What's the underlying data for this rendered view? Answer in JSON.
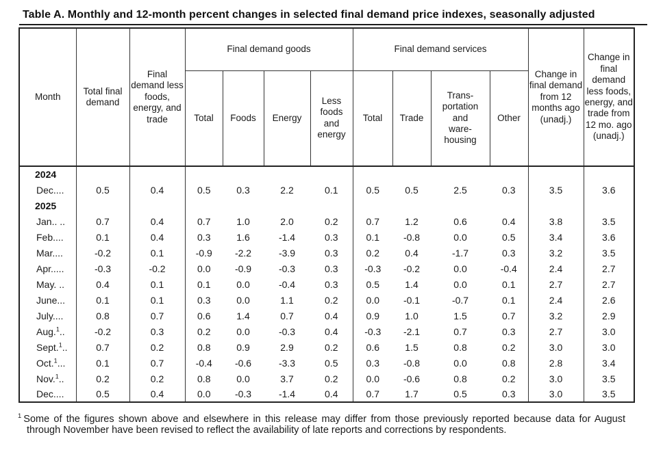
{
  "title": "Table A. Monthly and 12-month percent changes in selected final demand price indexes, seasonally adjusted",
  "table": {
    "header": {
      "month": "Month",
      "total_final_demand": "Total final demand",
      "fd_less_fet": "Final demand less foods, energy, and trade",
      "goods_group": "Final demand goods",
      "goods_cols": [
        "Total",
        "Foods",
        "Energy",
        "Less foods and energy"
      ],
      "services_group": "Final demand services",
      "services_cols": [
        "Total",
        "Trade",
        "Trans-\nportation\nand\nware-\nhousing",
        "Other"
      ],
      "change_12mo": "Change in final demand from 12 months ago (unadj.)",
      "change_12mo_less": "Change in final demand less foods, energy, and trade from 12 mo. ago (unadj.)"
    },
    "rows": [
      {
        "type": "year",
        "label": "2024"
      },
      {
        "type": "month",
        "label": "Dec",
        "sup": "",
        "dots": "....",
        "values": [
          "0.5",
          "0.4",
          "0.5",
          "0.3",
          "2.2",
          "0.1",
          "0.5",
          "0.5",
          "2.5",
          "0.3",
          "3.5",
          "3.6"
        ]
      },
      {
        "type": "year",
        "label": "2025"
      },
      {
        "type": "month",
        "label": "Jan",
        "sup": "",
        "dots": ".. ..",
        "values": [
          "0.7",
          "0.4",
          "0.7",
          "1.0",
          "2.0",
          "0.2",
          "0.7",
          "1.2",
          "0.6",
          "0.4",
          "3.8",
          "3.5"
        ]
      },
      {
        "type": "month",
        "label": "Feb",
        "sup": "",
        "dots": "....",
        "values": [
          "0.1",
          "0.4",
          "0.3",
          "1.6",
          "-1.4",
          "0.3",
          "0.1",
          "-0.8",
          "0.0",
          "0.5",
          "3.4",
          "3.6"
        ]
      },
      {
        "type": "month",
        "label": "Mar",
        "sup": "",
        "dots": "....",
        "values": [
          "-0.2",
          "0.1",
          "-0.9",
          "-2.2",
          "-3.9",
          "0.3",
          "0.2",
          "0.4",
          "-1.7",
          "0.3",
          "3.2",
          "3.5"
        ]
      },
      {
        "type": "month",
        "label": "Apr",
        "sup": "",
        "dots": ".....",
        "values": [
          "-0.3",
          "-0.2",
          "0.0",
          "-0.9",
          "-0.3",
          "0.3",
          "-0.3",
          "-0.2",
          "0.0",
          "-0.4",
          "2.4",
          "2.7"
        ]
      },
      {
        "type": "month",
        "label": "May",
        "sup": "",
        "dots": ". ..",
        "values": [
          "0.4",
          "0.1",
          "0.1",
          "0.0",
          "-0.4",
          "0.3",
          "0.5",
          "1.4",
          "0.0",
          "0.1",
          "2.7",
          "2.7"
        ]
      },
      {
        "type": "month",
        "label": "June",
        "sup": "",
        "dots": "...",
        "values": [
          "0.1",
          "0.1",
          "0.3",
          "0.0",
          "1.1",
          "0.2",
          "0.0",
          "-0.1",
          "-0.7",
          "0.1",
          "2.4",
          "2.6"
        ]
      },
      {
        "type": "month",
        "label": "July",
        "sup": "",
        "dots": "....",
        "values": [
          "0.8",
          "0.7",
          "0.6",
          "1.4",
          "0.7",
          "0.4",
          "0.9",
          "1.0",
          "1.5",
          "0.7",
          "3.2",
          "2.9"
        ]
      },
      {
        "type": "month",
        "label": "Aug.",
        "sup": "1",
        "dots": "..",
        "values": [
          "-0.2",
          "0.3",
          "0.2",
          "0.0",
          "-0.3",
          "0.4",
          "-0.3",
          "-2.1",
          "0.7",
          "0.3",
          "2.7",
          "3.0"
        ]
      },
      {
        "type": "month",
        "label": "Sept.",
        "sup": "1",
        "dots": "..",
        "values": [
          "0.7",
          "0.2",
          "0.8",
          "0.9",
          "2.9",
          "0.2",
          "0.6",
          "1.5",
          "0.8",
          "0.2",
          "3.0",
          "3.0"
        ]
      },
      {
        "type": "month",
        "label": "Oct.",
        "sup": "1",
        "dots": "...",
        "values": [
          "0.1",
          "0.7",
          "-0.4",
          "-0.6",
          "-3.3",
          "0.5",
          "0.3",
          "-0.8",
          "0.0",
          "0.8",
          "2.8",
          "3.4"
        ]
      },
      {
        "type": "month",
        "label": "Nov.",
        "sup": "1",
        "dots": "..",
        "values": [
          "0.2",
          "0.2",
          "0.8",
          "0.0",
          "3.7",
          "0.2",
          "0.0",
          "-0.6",
          "0.8",
          "0.2",
          "3.0",
          "3.5"
        ]
      },
      {
        "type": "month",
        "label": "Dec",
        "sup": "",
        "dots": "....",
        "values": [
          "0.5",
          "0.4",
          "0.0",
          "-0.3",
          "-1.4",
          "0.4",
          "0.7",
          "1.7",
          "0.5",
          "0.3",
          "3.0",
          "3.5"
        ]
      }
    ]
  },
  "footnote": {
    "marker": "1",
    "text": "Some of the figures shown above and elsewhere in this release may differ from those previously reported because data for August through November have been revised to reflect the availability of late reports and corrections by respondents."
  }
}
